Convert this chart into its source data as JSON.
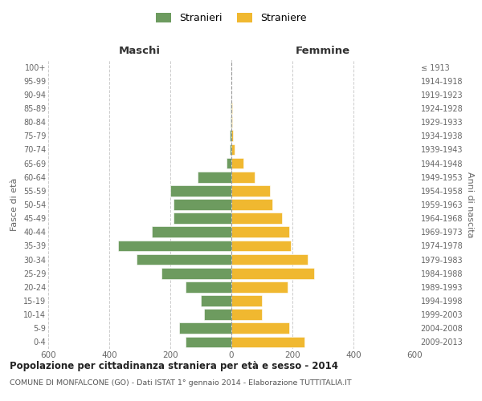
{
  "age_groups": [
    "0-4",
    "5-9",
    "10-14",
    "15-19",
    "20-24",
    "25-29",
    "30-34",
    "35-39",
    "40-44",
    "45-49",
    "50-54",
    "55-59",
    "60-64",
    "65-69",
    "70-74",
    "75-79",
    "80-84",
    "85-89",
    "90-94",
    "95-99",
    "100+"
  ],
  "birth_years": [
    "2009-2013",
    "2004-2008",
    "1999-2003",
    "1994-1998",
    "1989-1993",
    "1984-1988",
    "1979-1983",
    "1974-1978",
    "1969-1973",
    "1964-1968",
    "1959-1963",
    "1954-1958",
    "1949-1953",
    "1944-1948",
    "1939-1943",
    "1934-1938",
    "1929-1933",
    "1924-1928",
    "1919-1923",
    "1914-1918",
    "≤ 1913"
  ],
  "maschi": [
    150,
    170,
    90,
    100,
    150,
    230,
    310,
    370,
    260,
    190,
    190,
    200,
    110,
    15,
    5,
    5,
    2,
    2,
    1,
    0,
    0
  ],
  "femmine": [
    240,
    190,
    100,
    100,
    185,
    270,
    250,
    195,
    190,
    165,
    135,
    125,
    75,
    40,
    10,
    5,
    2,
    2,
    0,
    0,
    0
  ],
  "color_maschi": "#6d9b5f",
  "color_femmine": "#f0b830",
  "title": "Popolazione per cittadinanza straniera per età e sesso - 2014",
  "subtitle": "COMUNE DI MONFALCONE (GO) - Dati ISTAT 1° gennaio 2014 - Elaborazione TUTTITALIA.IT",
  "xlabel_left": "Maschi",
  "xlabel_right": "Femmine",
  "ylabel_left": "Fasce di età",
  "ylabel_right": "Anni di nascita",
  "legend_maschi": "Stranieri",
  "legend_femmine": "Straniere",
  "xlim": 600,
  "background_color": "#ffffff",
  "grid_color": "#cccccc"
}
